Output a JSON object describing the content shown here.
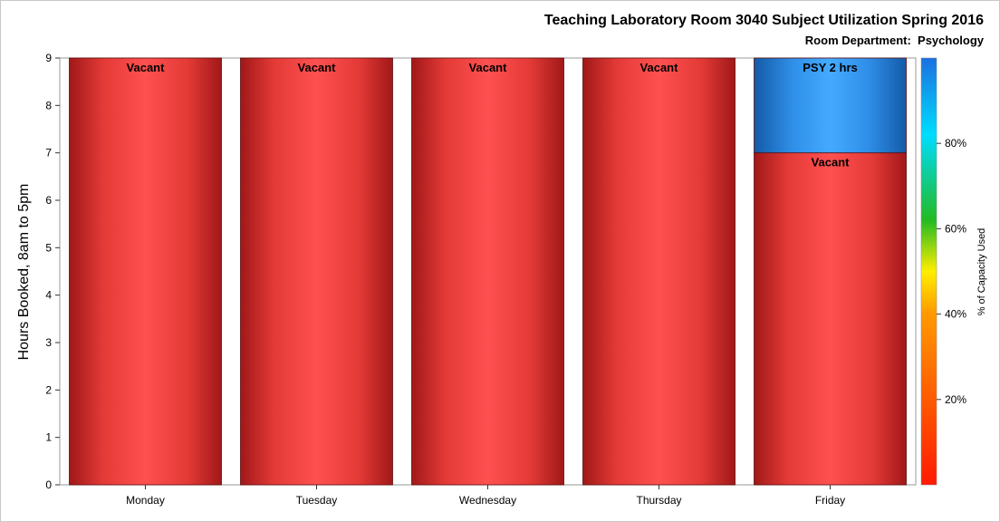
{
  "chart_data": {
    "type": "bar",
    "stacked": true,
    "title": "Teaching Laboratory Room 3040 Subject Utilization Spring 2016",
    "subtitle": "Room Department:  Psychology",
    "xlabel": "",
    "ylabel": "Hours Booked, 8am to 5pm",
    "ylim": [
      0,
      9
    ],
    "yticks": [
      0,
      1,
      2,
      3,
      4,
      5,
      6,
      7,
      8,
      9
    ],
    "categories": [
      "Monday",
      "Tuesday",
      "Wednesday",
      "Thursday",
      "Friday"
    ],
    "series": [
      {
        "name": "Vacant",
        "values": [
          9,
          9,
          9,
          9,
          7
        ],
        "color": "#ff4a4a",
        "labels": [
          "Vacant",
          "Vacant",
          "Vacant",
          "Vacant",
          "Vacant"
        ]
      },
      {
        "name": "PSY",
        "values": [
          0,
          0,
          0,
          0,
          2
        ],
        "color": "#3aa6ff",
        "labels": [
          "",
          "",
          "",
          "",
          "PSY 2 hrs"
        ]
      }
    ],
    "colorbar": {
      "label": "% of Capacity Used",
      "ticks": [
        "20%",
        "40%",
        "60%",
        "80%"
      ],
      "tick_values": [
        20,
        40,
        60,
        80
      ],
      "range": [
        0,
        100
      ],
      "colors": [
        "#ff2200",
        "#ff7700",
        "#ffee00",
        "#22cc22",
        "#00ccff",
        "#1177ee"
      ]
    },
    "grid": false
  }
}
